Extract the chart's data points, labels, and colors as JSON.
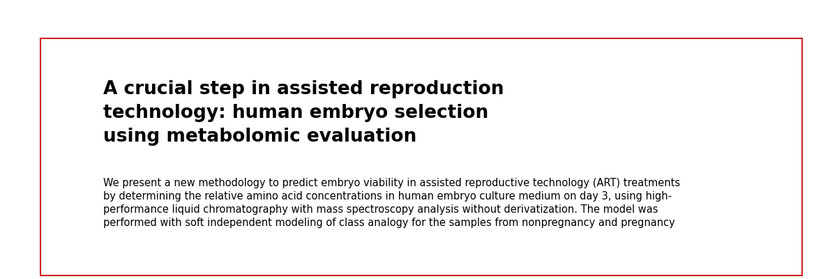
{
  "background_color": "#ffffff",
  "border_color": "#cc2222",
  "border_linewidth": 1.5,
  "title_lines": [
    "A crucial step in assisted reproduction",
    "technology: human embryo selection",
    "using metabolomic evaluation"
  ],
  "title_fontsize": 19,
  "title_color": "#000000",
  "body_text_lines": [
    "We present a new methodology to predict embryo viability in assisted reproductive technology (ART) treatments",
    "by determining the relative amino acid concentrations in human embryo culture medium on day 3, using high-",
    "performance liquid chromatography with mass spectroscopy analysis without derivatization. The model was",
    "performed with soft independent modeling of class analogy for the samples from nonpregnancy and pregnancy"
  ],
  "body_fontsize": 10.5,
  "body_color": "#000000",
  "outer_bg": "#ffffff"
}
